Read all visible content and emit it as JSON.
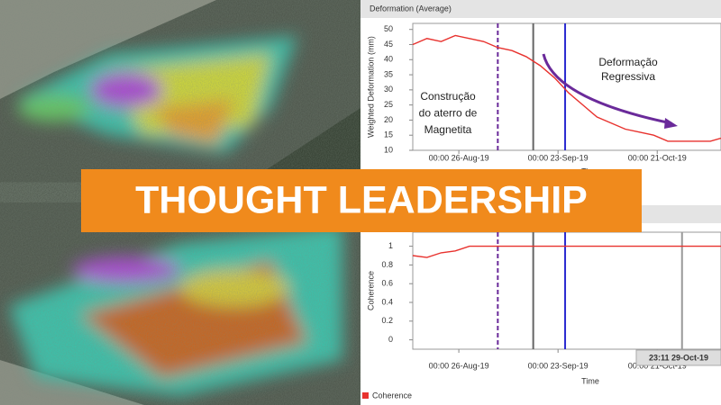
{
  "banner": {
    "text": "THOUGHT LEADERSHIP"
  },
  "chart_data": [
    {
      "type": "line",
      "title": "Deformation (Average)",
      "ylabel": "Weighted Deformation (mm)",
      "xlabel": "Time",
      "x": [
        "2019-08-13",
        "2019-08-17",
        "2019-08-21",
        "2019-08-25",
        "2019-08-29",
        "2019-09-02",
        "2019-09-06",
        "2019-09-10",
        "2019-09-14",
        "2019-09-18",
        "2019-09-22",
        "2019-09-26",
        "2019-09-30",
        "2019-10-04",
        "2019-10-08",
        "2019-10-12",
        "2019-10-16",
        "2019-10-20",
        "2019-10-24",
        "2019-10-28",
        "2019-11-01",
        "2019-11-05",
        "2019-11-08"
      ],
      "series": [
        {
          "color": "#e8322e",
          "values": [
            45,
            47,
            46,
            48,
            47,
            46,
            44,
            43,
            41,
            38,
            34,
            29,
            25,
            21,
            19,
            17,
            16,
            15,
            13,
            13,
            13,
            13,
            14
          ]
        }
      ],
      "xlim": [
        "2019-08-13",
        "2019-11-08"
      ],
      "xticks": [
        {
          "value": "2019-08-26",
          "label": "00:00 26-Aug-19"
        },
        {
          "value": "2019-09-23",
          "label": "00:00 23-Sep-19"
        },
        {
          "value": "2019-10-21",
          "label": "00:00 21-Oct-19"
        }
      ],
      "ylim": [
        10,
        52
      ],
      "yticks": [
        10,
        15,
        20,
        25,
        30,
        35,
        40,
        45,
        50
      ],
      "vlines": [
        {
          "value": "2019-09-06",
          "color": "#6a2a9a",
          "dashed": true
        },
        {
          "value": "2019-09-16",
          "color": "#666666",
          "dashed": false
        },
        {
          "value": "2019-09-25",
          "color": "#2a2ad0",
          "dashed": false
        }
      ],
      "annotations": [
        {
          "lines": [
            "Construção",
            "do aterro de",
            "Magnetita"
          ]
        },
        {
          "lines": [
            "Deformação",
            "Regressiva"
          ]
        }
      ]
    },
    {
      "type": "line",
      "ylabel": "Coherence",
      "xlabel": "Time",
      "x": [
        "2019-08-13",
        "2019-08-17",
        "2019-08-21",
        "2019-08-25",
        "2019-08-29",
        "2019-09-02",
        "2019-09-06",
        "2019-09-10",
        "2019-09-14",
        "2019-09-18",
        "2019-09-22",
        "2019-09-26",
        "2019-09-30",
        "2019-10-04",
        "2019-10-08",
        "2019-10-12",
        "2019-10-16",
        "2019-10-20",
        "2019-10-24",
        "2019-10-28",
        "2019-11-01",
        "2019-11-05",
        "2019-11-08"
      ],
      "series": [
        {
          "name": "Coherence",
          "color": "#e8322e",
          "values": [
            0.9,
            0.88,
            0.93,
            0.95,
            1,
            1,
            1,
            1,
            1,
            1,
            1,
            1,
            1,
            1,
            1,
            1,
            1,
            1,
            1,
            1,
            1,
            1,
            1
          ]
        }
      ],
      "xlim": [
        "2019-08-13",
        "2019-11-08"
      ],
      "xticks": [
        {
          "value": "2019-08-26",
          "label": "00:00 26-Aug-19"
        },
        {
          "value": "2019-09-23",
          "label": "00:00 23-Sep-19"
        },
        {
          "value": "2019-10-21",
          "label": "00:00 21-Oct-19"
        }
      ],
      "ylim": [
        -0.1,
        1.15
      ],
      "yticks": [
        0,
        0.2,
        0.4,
        0.6,
        0.8,
        1
      ],
      "vlines": [
        {
          "value": "2019-09-06",
          "color": "#6a2a9a",
          "dashed": true
        },
        {
          "value": "2019-09-16",
          "color": "#666666",
          "dashed": false
        },
        {
          "value": "2019-09-25",
          "color": "#2a2ad0",
          "dashed": false
        },
        {
          "value": "2019-10-28",
          "color": "#999999",
          "dashed": false
        }
      ],
      "tooltip": "23:11 29-Oct-19"
    }
  ]
}
